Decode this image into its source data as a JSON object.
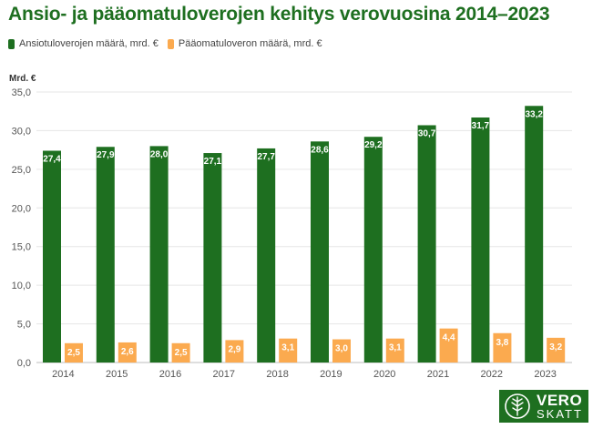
{
  "title": "Ansio- ja pääomatuloverojen kehitys verovuosina 2014–2023",
  "colors": {
    "series1": "#1e6f20",
    "series2": "#fbaa4f",
    "title": "#1e6f20"
  },
  "logo": {
    "line1": "VERO",
    "line2": "SKATT",
    "icon": "tree-emblem-icon"
  },
  "chart_data": {
    "type": "bar",
    "ylabel": "Mrd. €",
    "ylim": [
      0,
      35
    ],
    "yticks": [
      "0,0",
      "5,0",
      "10,0",
      "15,0",
      "20,0",
      "25,0",
      "30,0",
      "35,0"
    ],
    "grid": true,
    "legend_position": "top-left",
    "categories": [
      "2014",
      "2015",
      "2016",
      "2017",
      "2018",
      "2019",
      "2020",
      "2021",
      "2022",
      "2023"
    ],
    "series": [
      {
        "name": "Ansiotuloverojen määrä, mrd. €",
        "values": [
          27.4,
          27.9,
          28.0,
          27.1,
          27.7,
          28.6,
          29.2,
          30.7,
          31.7,
          33.2
        ],
        "labels": [
          "27,4",
          "27,9",
          "28,0",
          "27,1",
          "27,7",
          "28,6",
          "29,2",
          "30,7",
          "31,7",
          "33,2"
        ]
      },
      {
        "name": "Pääomatuloveron määrä, mrd. €",
        "values": [
          2.5,
          2.6,
          2.5,
          2.9,
          3.1,
          3.0,
          3.1,
          4.4,
          3.8,
          3.2
        ],
        "labels": [
          "2,5",
          "2,6",
          "2,5",
          "2,9",
          "3,1",
          "3,0",
          "3,1",
          "4,4",
          "3,8",
          "3,2"
        ]
      }
    ]
  }
}
